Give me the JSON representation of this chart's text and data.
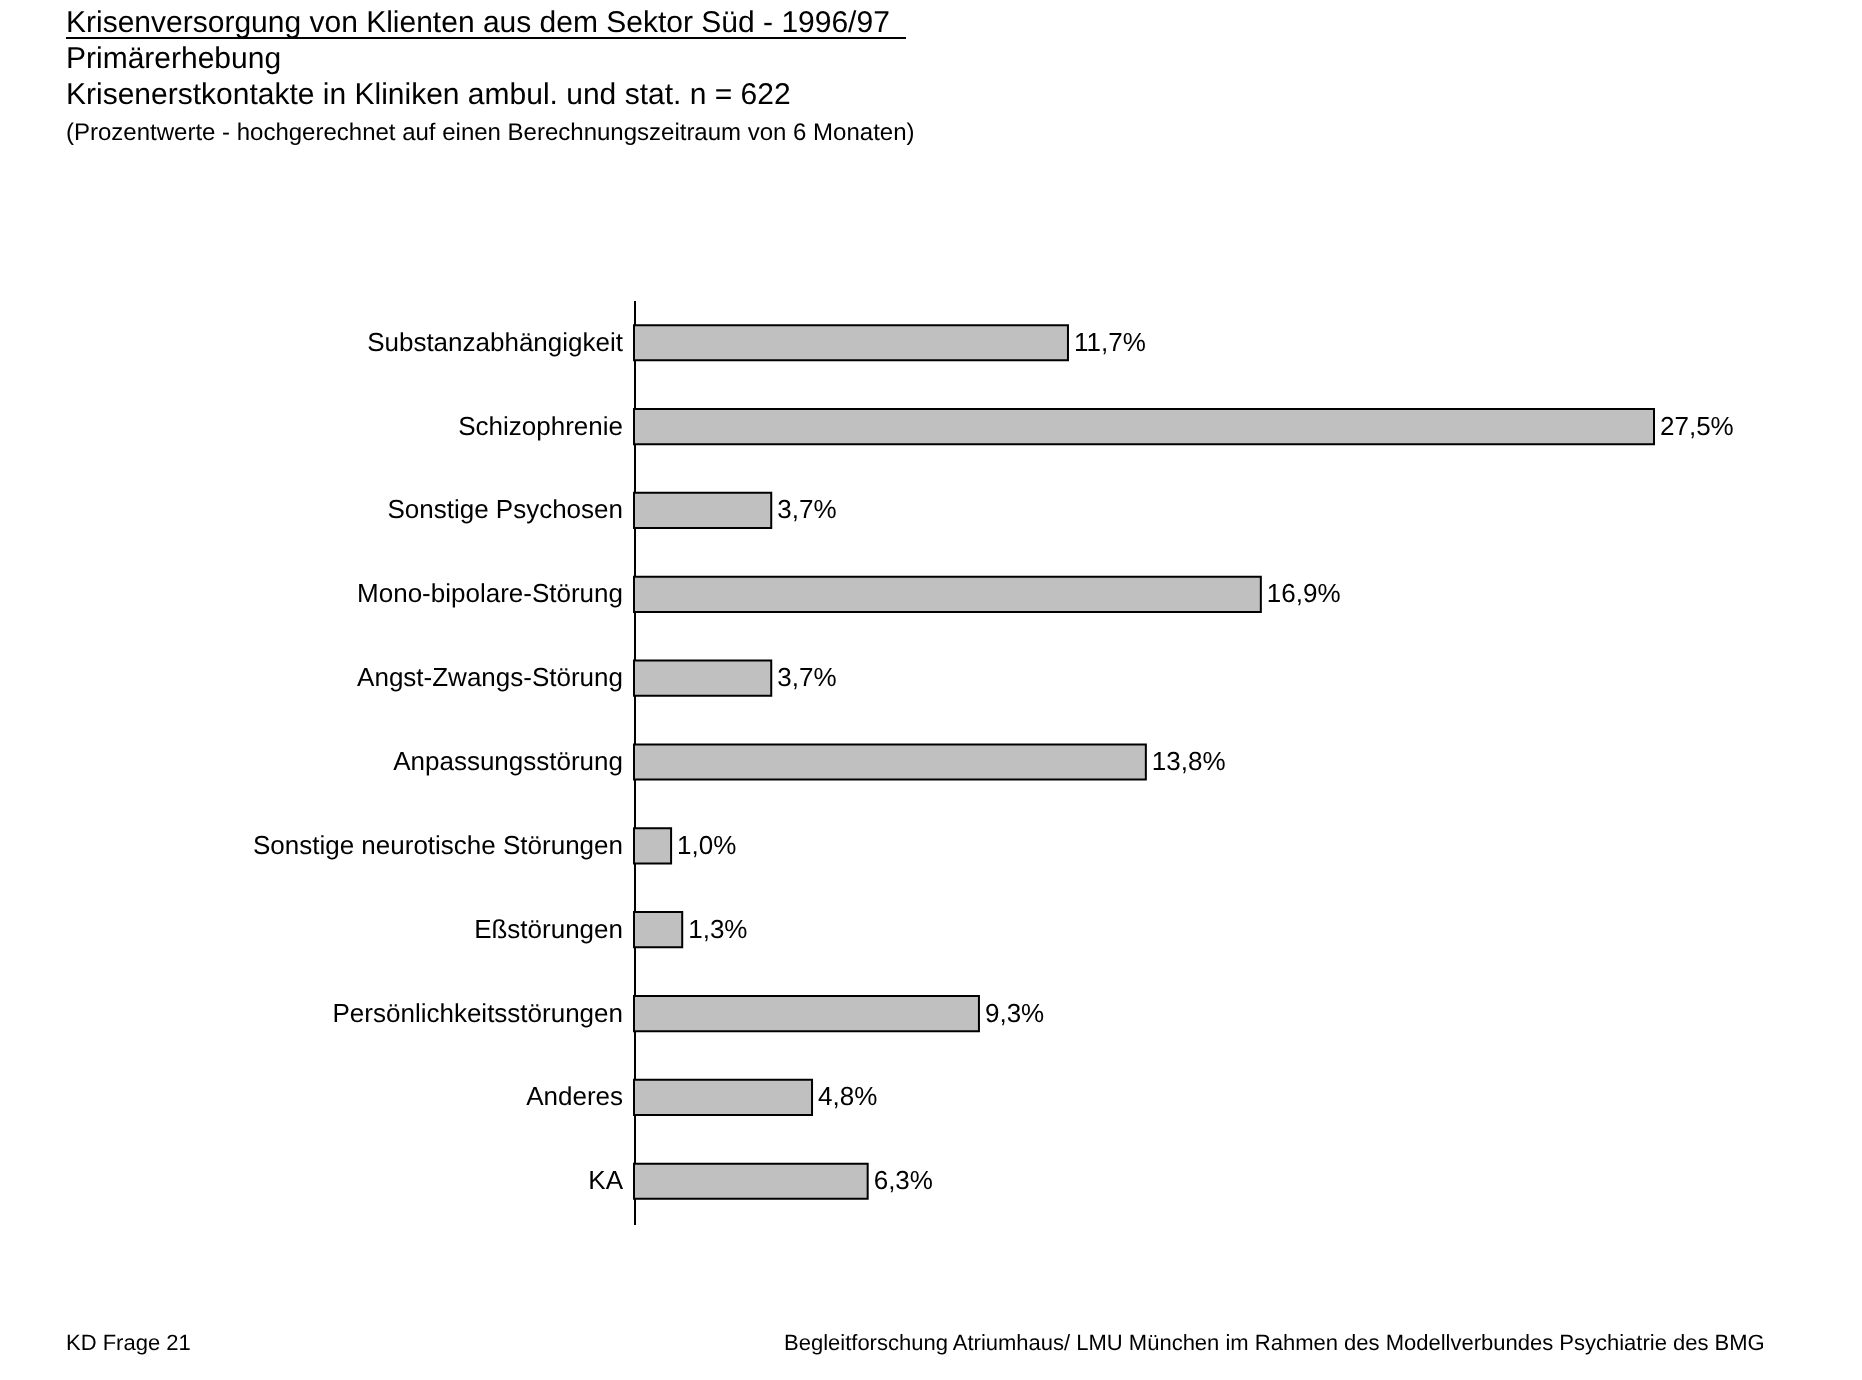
{
  "chart_data": {
    "type": "bar",
    "orientation": "horizontal",
    "title": "Krisenversorgung von Klienten aus dem Sektor Süd - 1996/97",
    "subtitle": [
      "Primärerhebung",
      "Krisenerstkontakte in Kliniken ambul. und stat.  n = 622"
    ],
    "categories": [
      "Substanzabhängigkeit",
      "Schizophrenie",
      "Sonstige Psychosen",
      "Mono-bipolare-Störung",
      "Angst-Zwangs-Störung",
      "Anpassungsstörung",
      "Sonstige neurotische Störungen",
      "Eßstörungen",
      "Persönlichkeitsstörungen",
      "Anderes",
      "KA"
    ],
    "values": [
      11.7,
      27.5,
      3.7,
      16.9,
      3.7,
      13.8,
      1.0,
      1.3,
      9.3,
      4.8,
      6.3
    ],
    "value_labels": [
      "11,7%",
      "27,5%",
      "3,7%",
      "16,9%",
      "3,7%",
      "13,8%",
      "1,0%",
      "1,3%",
      "9,3%",
      "4,8%",
      "6,3%"
    ],
    "color": "#c0c0c0",
    "annotations": [
      "(Prozentwerte - hochgerechnet auf  einen Berechnungszeitraum von 6 Monaten)",
      "KD Frage 21",
      "Begleitforschung  Atriumhaus/ LMU München im Rahmen des Modellverbundes Psychiatrie des BMG"
    ],
    "legend": false
  }
}
